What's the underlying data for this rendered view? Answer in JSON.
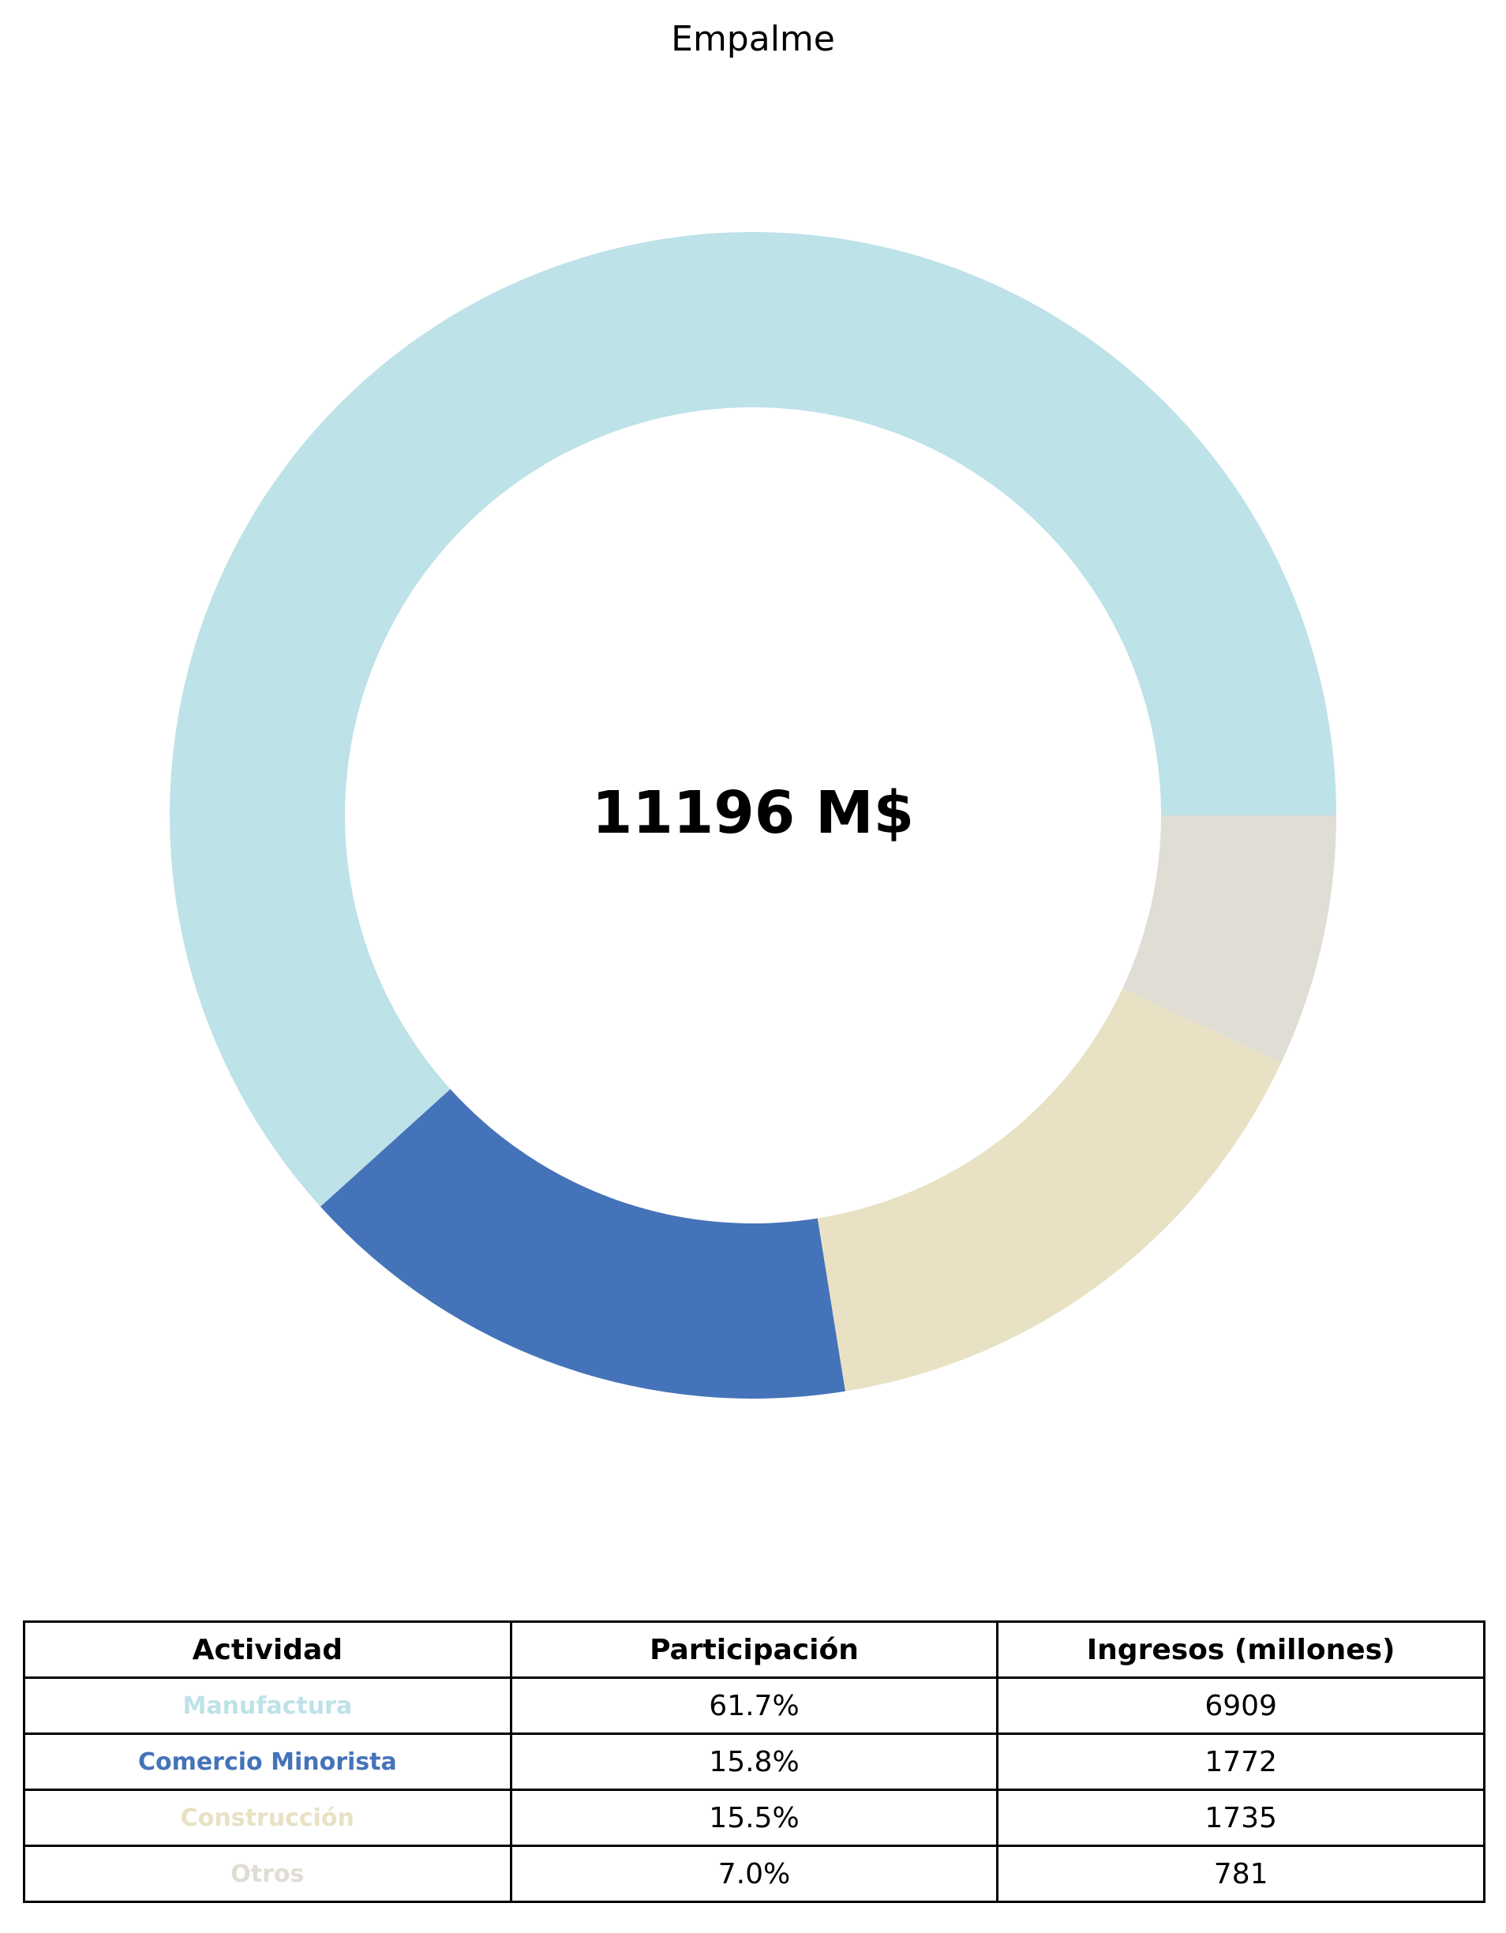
{
  "chart_data": {
    "type": "pie",
    "title": "Empalme",
    "center_label": "11196 M$",
    "categories": [
      "Manufactura",
      "Comercio Minorista",
      "Construcción",
      "Otros"
    ],
    "values": [
      6909,
      1772,
      1735,
      781
    ],
    "percent_labels": [
      "61.7%",
      "15.8%",
      "15.5%",
      "7.0%"
    ],
    "colors": [
      "#bde2e8",
      "#4573b9",
      "#e8e1c3",
      "#e0ddd5"
    ],
    "table": {
      "headers": [
        "Actividad",
        "Participación",
        "Ingresos (millones)"
      ],
      "rows": [
        [
          "Manufactura",
          "61.7%",
          "6909"
        ],
        [
          "Comercio Minorista",
          "15.8%",
          "1772"
        ],
        [
          "Construcción",
          "15.5%",
          "1735"
        ],
        [
          "Otros",
          "7.0%",
          "781"
        ]
      ]
    }
  }
}
